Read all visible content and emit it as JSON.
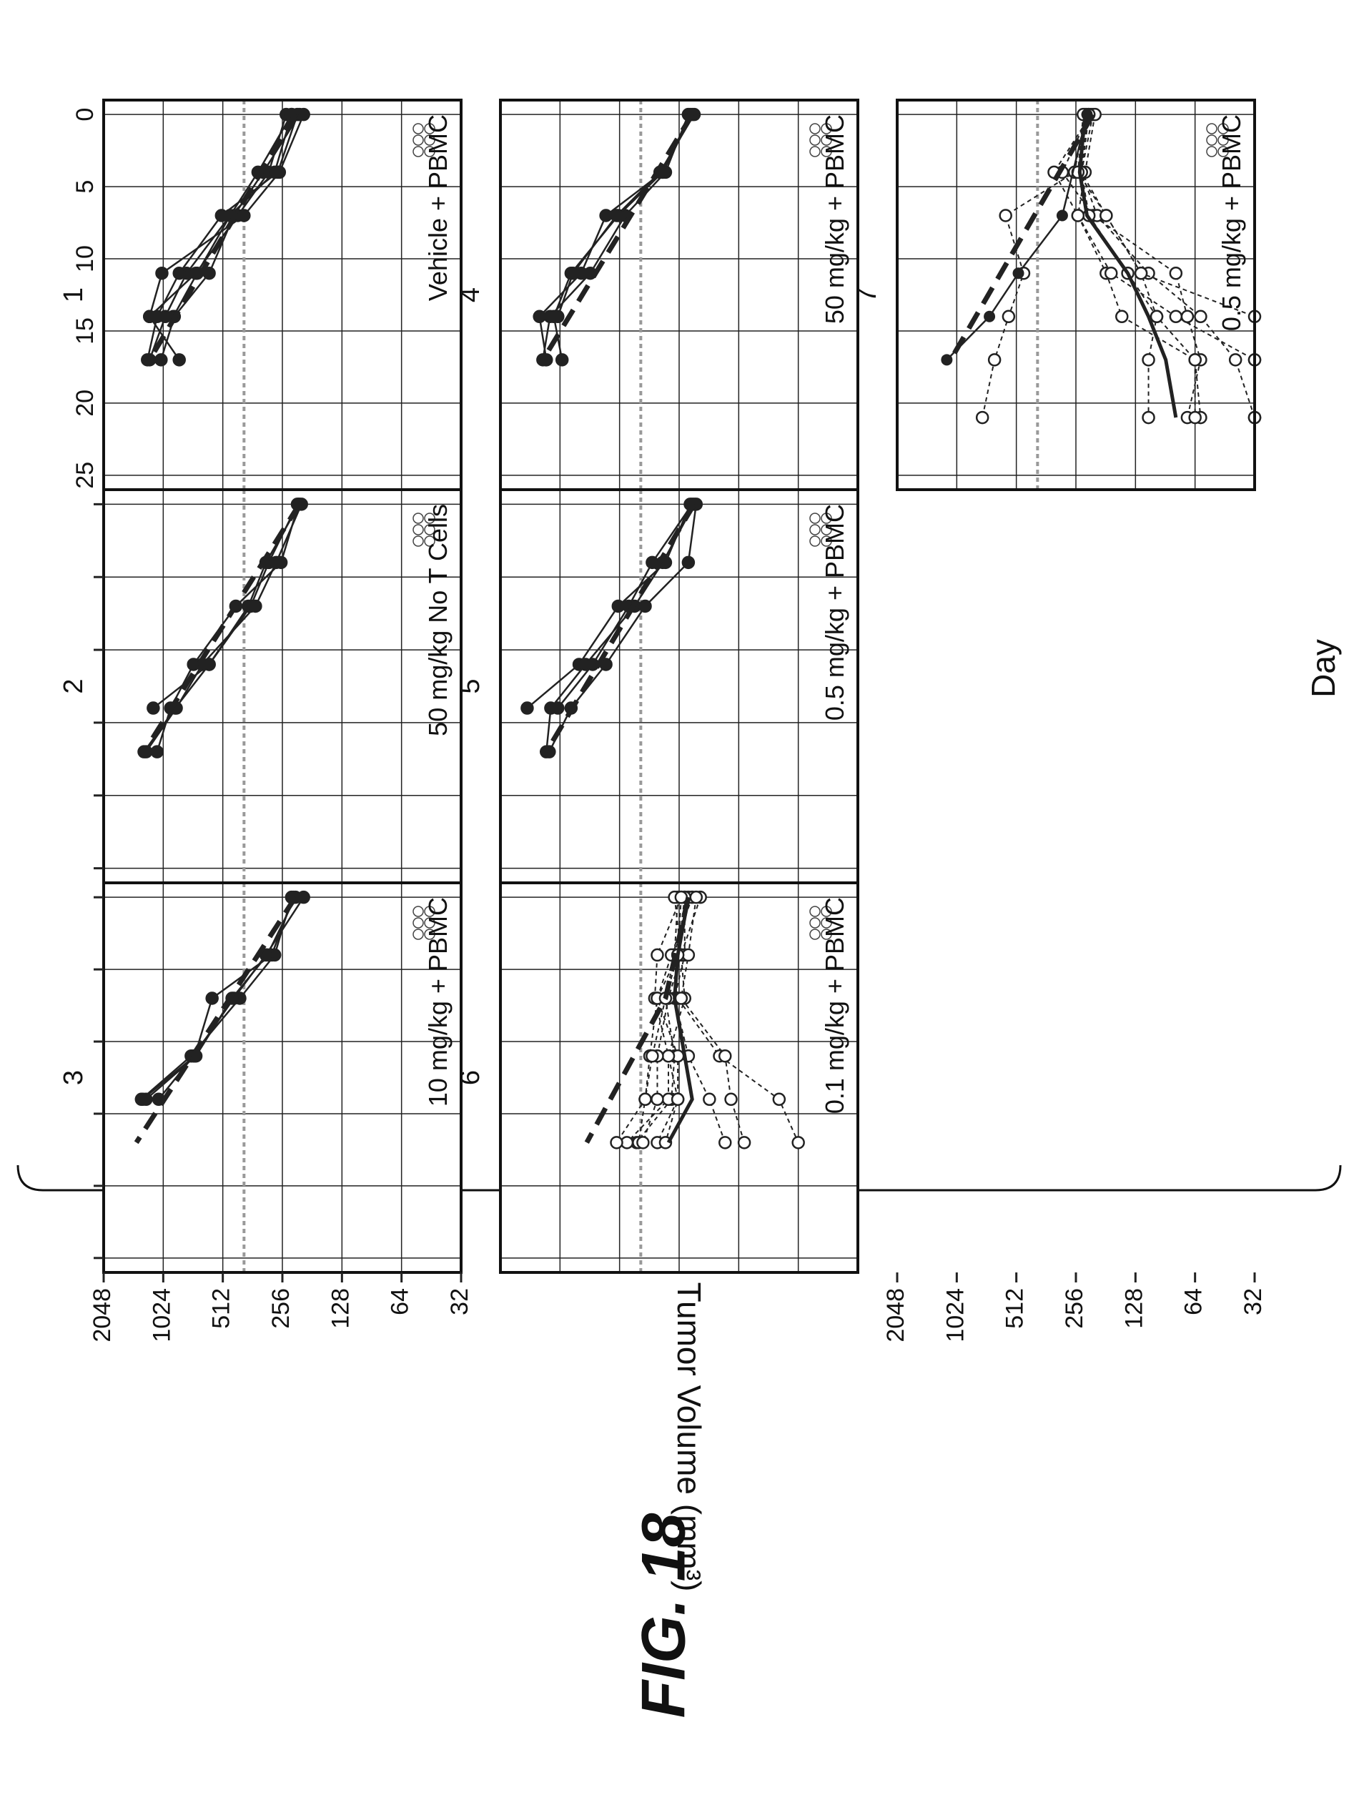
{
  "figure_label": "FIG. 18",
  "chart_data": {
    "type": "line",
    "ylabel": "Tumor Volume (mm³)",
    "xlabel": "Day",
    "y_scale": "log2",
    "ylim": [
      32,
      2048
    ],
    "yticks": [
      "2048",
      "1024",
      "512",
      "256",
      "128",
      "64",
      "32"
    ],
    "xlim": [
      -1,
      26
    ],
    "xticks": [
      "0",
      "5",
      "10",
      "15",
      "20",
      "25"
    ],
    "reference_line_y": 400,
    "panels": [
      {
        "id": "1",
        "title": "Vehicle + PBMC",
        "individual": [
          [
            [
              0,
              245
            ],
            [
              4,
              300
            ],
            [
              7,
              430
            ],
            [
              11,
              700
            ],
            [
              14,
              1200
            ]
          ],
          [
            [
              0,
              230
            ],
            [
              4,
              280
            ],
            [
              7,
              470
            ],
            [
              11,
              780
            ],
            [
              14,
              1000
            ],
            [
              17,
              1200
            ]
          ],
          [
            [
              0,
              215
            ],
            [
              4,
              270
            ],
            [
              7,
              520
            ],
            [
              11,
              850
            ],
            [
              14,
              1100
            ],
            [
              17,
              1230
            ]
          ],
          [
            [
              0,
              210
            ],
            [
              4,
              320
            ],
            [
              7,
              450
            ],
            [
              11,
              600
            ],
            [
              14,
              900
            ],
            [
              17,
              1050
            ]
          ],
          [
            [
              0,
              200
            ],
            [
              4,
              265
            ],
            [
              7,
              400
            ],
            [
              11,
              1040
            ],
            [
              14,
              1200
            ],
            [
              17,
              850
            ]
          ],
          [
            [
              0,
              230
            ],
            [
              4,
              340
            ],
            [
              7,
              470
            ],
            [
              11,
              690
            ],
            [
              14,
              910
            ]
          ]
        ],
        "trend": [
          [
            0,
            220
          ],
          [
            17,
            1200
          ]
        ]
      },
      {
        "id": "2",
        "title": "50 mg/kg No T Cells",
        "individual": [
          [
            [
              0,
              215
            ],
            [
              4,
              300
            ],
            [
              7,
              370
            ],
            [
              11,
              600
            ],
            [
              14,
              890
            ],
            [
              17,
              1280
            ]
          ],
          [
            [
              0,
              210
            ],
            [
              4,
              310
            ],
            [
              7,
              380
            ],
            [
              11,
              600
            ],
            [
              14,
              1150
            ]
          ],
          [
            [
              0,
              205
            ],
            [
              4,
              275
            ],
            [
              7,
              350
            ],
            [
              11,
              650
            ],
            [
              14,
              880
            ],
            [
              17,
              1250
            ]
          ],
          [
            [
              0,
              212
            ],
            [
              4,
              260
            ],
            [
              7,
              440
            ],
            [
              11,
              720
            ],
            [
              14,
              940
            ],
            [
              17,
              1100
            ]
          ]
        ],
        "trend": [
          [
            0,
            210
          ],
          [
            17,
            1280
          ]
        ]
      },
      {
        "id": "3",
        "title": "10 mg/kg + PBMC",
        "individual": [
          [
            [
              0,
              225
            ],
            [
              4,
              290
            ],
            [
              7,
              580
            ],
            [
              11,
              710
            ],
            [
              14,
              1300
            ]
          ],
          [
            [
              0,
              230
            ],
            [
              4,
              280
            ],
            [
              7,
              420
            ],
            [
              11,
              740
            ],
            [
              14,
              1320
            ]
          ],
          [
            [
              0,
              200
            ],
            [
              4,
              310
            ],
            [
              7,
              450
            ],
            [
              11,
              720
            ],
            [
              14,
              1080
            ]
          ],
          [
            [
              0,
              220
            ],
            [
              4,
              305
            ],
            [
              7,
              460
            ],
            [
              11,
              700
            ],
            [
              14,
              1250
            ]
          ]
        ],
        "trend": [
          [
            0,
            220
          ],
          [
            17,
            1400
          ]
        ]
      },
      {
        "id": "4",
        "title": "50 mg/kg + PBMC",
        "individual": [
          [
            [
              0,
              230
            ],
            [
              4,
              300
            ],
            [
              7,
              480
            ],
            [
              11,
              720
            ],
            [
              14,
              1150
            ],
            [
              17,
              1250
            ]
          ],
          [
            [
              0,
              225
            ],
            [
              4,
              310
            ],
            [
              7,
              520
            ],
            [
              11,
              900
            ],
            [
              14,
              1100
            ],
            [
              17,
              1000
            ]
          ],
          [
            [
              0,
              220
            ],
            [
              4,
              310
            ],
            [
              7,
              600
            ],
            [
              11,
              800
            ],
            [
              14,
              1300
            ],
            [
              17,
              1200
            ]
          ],
          [
            [
              0,
              215
            ],
            [
              4,
              320
            ],
            [
              7,
              530
            ],
            [
              11,
              880
            ],
            [
              14,
              1050
            ]
          ]
        ],
        "trend": [
          [
            0,
            220
          ],
          [
            17,
            1250
          ]
        ]
      },
      {
        "id": "5",
        "title": "0.5 mg/kg + PBMC",
        "individual": [
          [
            [
              0,
              225
            ],
            [
              4,
              300
            ],
            [
              7,
              520
            ],
            [
              11,
              820
            ],
            [
              14,
              1500
            ]
          ],
          [
            [
              0,
              215
            ],
            [
              4,
              310
            ],
            [
              7,
              430
            ],
            [
              11,
              760
            ],
            [
              14,
              1140
            ],
            [
              17,
              1200
            ]
          ],
          [
            [
              0,
              210
            ],
            [
              4,
              230
            ],
            [
              7,
              380
            ],
            [
              11,
              600
            ],
            [
              14,
              900
            ],
            [
              17,
              1160
            ]
          ],
          [
            [
              0,
              220
            ],
            [
              4,
              350
            ],
            [
              7,
              460
            ],
            [
              11,
              700
            ],
            [
              14,
              1050
            ]
          ]
        ],
        "trend": [
          [
            0,
            215
          ],
          [
            17,
            1200
          ]
        ]
      },
      {
        "id": "6",
        "title": "0.1 mg/kg + PBMC",
        "individual": [
          [
            [
              0,
              230
            ],
            [
              4,
              270
            ],
            [
              7,
              300
            ],
            [
              11,
              270
            ],
            [
              14,
              280
            ],
            [
              17,
              420
            ]
          ],
          [
            [
              0,
              250
            ],
            [
              4,
              330
            ],
            [
              7,
              340
            ],
            [
              11,
              290
            ],
            [
              14,
              290
            ],
            [
              17,
              470
            ]
          ],
          [
            [
              0,
              240
            ],
            [
              4,
              240
            ],
            [
              7,
              270
            ],
            [
              11,
              230
            ],
            [
              14,
              180
            ],
            [
              17,
              150
            ]
          ],
          [
            [
              0,
              260
            ],
            [
              4,
              270
            ],
            [
              7,
              260
            ],
            [
              11,
              160
            ],
            [
              14,
              80
            ],
            [
              17,
              64
            ]
          ],
          [
            [
              0,
              220
            ],
            [
              4,
              280
            ],
            [
              7,
              330
            ],
            [
              11,
              260
            ],
            [
              14,
              260
            ],
            [
              17,
              330
            ]
          ],
          [
            [
              0,
              200
            ],
            [
              4,
              250
            ],
            [
              7,
              240
            ],
            [
              11,
              290
            ],
            [
              14,
              260
            ],
            [
              17,
              300
            ]
          ],
          [
            [
              0,
              240
            ],
            [
              4,
              260
            ],
            [
              7,
              330
            ],
            [
              11,
              360
            ],
            [
              14,
              380
            ],
            [
              17,
              410
            ]
          ],
          [
            [
              0,
              270
            ],
            [
              4,
              250
            ],
            [
              7,
              290
            ],
            [
              11,
              330
            ],
            [
              14,
              330
            ],
            [
              17,
              390
            ]
          ],
          [
            [
              0,
              210
            ],
            [
              4,
              230
            ],
            [
              7,
              250
            ],
            [
              11,
              150
            ],
            [
              14,
              140
            ],
            [
              17,
              120
            ]
          ],
          [
            [
              0,
              250
            ],
            [
              4,
              260
            ],
            [
              7,
              300
            ],
            [
              11,
              350
            ],
            [
              14,
              380
            ],
            [
              17,
              530
            ]
          ]
        ],
        "median": [
          [
            0,
            230
          ],
          [
            4,
            260
          ],
          [
            7,
            270
          ],
          [
            11,
            240
          ],
          [
            14,
            220
          ],
          [
            17,
            290
          ]
        ],
        "trend": [
          [
            0,
            230
          ],
          [
            7,
            300
          ],
          [
            17,
            750
          ]
        ]
      },
      {
        "id": "7",
        "title": "0.5 mg/kg + PBMC",
        "responders": [
          [
            [
              0,
              220
            ],
            [
              4,
              300
            ],
            [
              7,
              210
            ],
            [
              11,
              80
            ],
            [
              14,
              70
            ],
            [
              17,
              60
            ],
            [
              21,
              70
            ]
          ],
          [
            [
              0,
              215
            ],
            [
              4,
              330
            ],
            [
              7,
              250
            ],
            [
              11,
              180
            ],
            [
              14,
              150
            ],
            [
              17,
              64
            ],
            [
              21,
              60
            ]
          ],
          [
            [
              0,
              230
            ],
            [
              4,
              260
            ],
            [
              7,
              580
            ],
            [
              11,
              470
            ],
            [
              14,
              560
            ],
            [
              17,
              660
            ],
            [
              21,
              760
            ]
          ],
          [
            [
              0,
              210
            ],
            [
              4,
              240
            ],
            [
              7,
              200
            ],
            [
              11,
              110
            ],
            [
              14,
              60
            ],
            [
              17,
              40
            ],
            [
              21,
              32
            ]
          ],
          [
            [
              0,
              225
            ],
            [
              4,
              240
            ],
            [
              7,
              220
            ],
            [
              11,
              140
            ],
            [
              14,
              100
            ],
            [
              17,
              64
            ],
            [
              21,
              64
            ]
          ],
          [
            [
              0,
              205
            ],
            [
              4,
              230
            ],
            [
              7,
              250
            ],
            [
              11,
              170
            ],
            [
              14,
              80
            ],
            [
              17,
              32
            ],
            [
              21,
              32
            ]
          ],
          [
            [
              0,
              220
            ],
            [
              4,
              240
            ],
            [
              7,
              180
            ],
            [
              11,
              120
            ],
            [
              14,
              32
            ],
            [
              17,
              32
            ],
            [
              21,
              32
            ]
          ],
          [
            [
              0,
              235
            ],
            [
              4,
              250
            ],
            [
              7,
              180
            ],
            [
              11,
              120
            ],
            [
              14,
              100
            ],
            [
              17,
              110
            ],
            [
              21,
              110
            ]
          ]
        ],
        "progressor": [
          [
            0,
            225
          ],
          [
            7,
            300
          ],
          [
            11,
            500
          ],
          [
            14,
            700
          ],
          [
            17,
            1150
          ]
        ],
        "median": [
          [
            0,
            230
          ],
          [
            4,
            245
          ],
          [
            7,
            225
          ],
          [
            11,
            140
          ],
          [
            14,
            110
          ],
          [
            17,
            90
          ],
          [
            21,
            80
          ]
        ],
        "trend": [
          [
            0,
            210
          ],
          [
            17,
            1100
          ]
        ]
      }
    ]
  }
}
